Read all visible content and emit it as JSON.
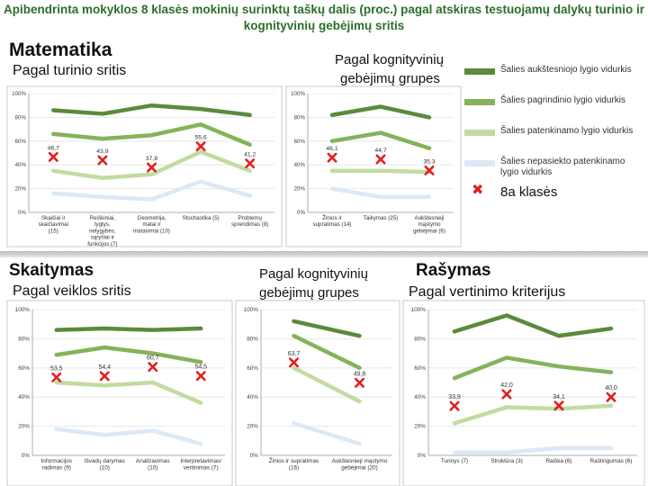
{
  "title": "Apibendrinta mokyklos 8 klasės mokinių surinktų taškų dalis (proc.) pagal atskiras testuojamų dalykų  turinio ir kognityvinių gebėjimų sritis",
  "sections": {
    "matematika": "Matematika",
    "mat_turinio": "Pagal turinio sritis",
    "mat_kogn_1": "Pagal kognityvinių",
    "mat_kogn_2": "gebėjimų grupes",
    "skaitymas": "Skaitymas",
    "sk_veiklos": "Pagal veiklos sritis",
    "sk_kogn_1": "Pagal kognityvinių",
    "sk_kogn_2": "gebėjimų grupes",
    "rasymas": "Rašymas",
    "ras_vert": "Pagal vertinimo kriterijus"
  },
  "legend": [
    {
      "label": "Šalies aukštesniojo lygio vidurkis",
      "color": "#5b8a3c"
    },
    {
      "label": "Šalies pagrindinio lygio vidurkis",
      "color": "#86b25a"
    },
    {
      "label": "Šalies patenkinamo lygio vidurkis",
      "color": "#c2dca0"
    },
    {
      "label": "Šalies nepasiekto patenkinamo lygio vidurkis",
      "color": "#dce8f5"
    },
    {
      "label": "8a klasės",
      "marker": "x",
      "color": "#e02020"
    }
  ],
  "chart_data": [
    {
      "type": "line",
      "id": "mat_turinio",
      "categories": [
        "Skaičiai ir skaičiavimai (15)",
        "Reiškiniai, lygtys, nelygybės, sąryšiai ir funkcijos (7)",
        "Geometrija, matai ir matavimai (10)",
        "Stochastika (5)",
        "Problemų sprendimas (8)"
      ],
      "ylim": [
        0,
        100
      ],
      "yticks": [
        "0%",
        "20%",
        "40%",
        "60%",
        "80%",
        "100%"
      ],
      "series": [
        {
          "name": "Šalies aukštesniojo lygio vidurkis",
          "values": [
            86,
            83,
            90,
            87,
            82
          ]
        },
        {
          "name": "Šalies pagrindinio lygio vidurkis",
          "values": [
            66,
            62,
            65,
            74,
            57
          ]
        },
        {
          "name": "Šalies patenkinamo lygio vidurkis",
          "values": [
            35,
            29,
            32,
            51,
            35
          ]
        },
        {
          "name": "Šalies nepasiekto patenkinamo lygio vidurkis",
          "values": [
            16,
            13,
            11,
            26,
            14
          ]
        }
      ],
      "class_values": [
        46.7,
        43.9,
        37.8,
        55.6,
        41.2
      ],
      "class_labels": [
        "46,7",
        "43,9",
        "37,8",
        "55,6",
        "41,2"
      ]
    },
    {
      "type": "line",
      "id": "mat_kogn",
      "categories": [
        "Žinios ir supratimas (14)",
        "Taikymas (25)",
        "Aukštesnieji mąstymo gebėjimai (6)"
      ],
      "ylim": [
        0,
        100
      ],
      "yticks": [
        "0%",
        "20%",
        "40%",
        "60%",
        "80%",
        "100%"
      ],
      "series": [
        {
          "name": "Šalies aukštesniojo lygio vidurkis",
          "values": [
            82,
            89,
            80
          ]
        },
        {
          "name": "Šalies pagrindinio lygio vidurkis",
          "values": [
            60,
            67,
            54
          ]
        },
        {
          "name": "Šalies patenkinamo lygio vidurkis",
          "values": [
            35,
            35,
            34
          ]
        },
        {
          "name": "Šalies nepasiekto patenkinamo lygio vidurkis",
          "values": [
            20,
            13,
            13
          ]
        }
      ],
      "class_values": [
        46.1,
        44.7,
        35.3
      ],
      "class_labels": [
        "46,1",
        "44,7",
        "35,3"
      ]
    },
    {
      "type": "line",
      "id": "sk_veiklos",
      "categories": [
        "Informacijos radimas (9)",
        "Išvadų darymas (10)",
        "Analizavimas (10)",
        "Interpretavimas/ vertinimas (7)"
      ],
      "ylim": [
        0,
        100
      ],
      "yticks": [
        "0%",
        "20%",
        "40%",
        "60%",
        "80%",
        "100%"
      ],
      "series": [
        {
          "name": "Šalies aukštesniojo lygio vidurkis",
          "values": [
            86,
            87,
            86,
            87
          ]
        },
        {
          "name": "Šalies pagrindinio lygio vidurkis",
          "values": [
            69,
            74,
            70,
            64
          ]
        },
        {
          "name": "Šalies patenkinamo lygio vidurkis",
          "values": [
            50,
            48,
            50,
            36
          ]
        },
        {
          "name": "Šalies nepasiekto patenkinamo lygio vidurkis",
          "values": [
            18,
            14,
            17,
            8
          ]
        }
      ],
      "class_values": [
        53.5,
        54.4,
        60.7,
        54.5
      ],
      "class_labels": [
        "53,5",
        "54,4",
        "60,7",
        "54,5"
      ]
    },
    {
      "type": "line",
      "id": "sk_kogn",
      "categories": [
        "Žinios ir supratimas (16)",
        "Aukštesnieji mąstymo gebėjimai (20)"
      ],
      "ylim": [
        0,
        100
      ],
      "yticks": [
        "0%",
        "20%",
        "40%",
        "60%",
        "80%",
        "100%"
      ],
      "series": [
        {
          "name": "Šalies aukštesniojo lygio vidurkis",
          "values": [
            92,
            82
          ]
        },
        {
          "name": "Šalies pagrindinio lygio vidurkis",
          "values": [
            82,
            60
          ]
        },
        {
          "name": "Šalies patenkinamo lygio vidurkis",
          "values": [
            60,
            37
          ]
        },
        {
          "name": "Šalies nepasiekto patenkinamo lygio vidurkis",
          "values": [
            22,
            8
          ]
        }
      ],
      "class_values": [
        63.7,
        49.8
      ],
      "class_labels": [
        "63,7",
        "49,8"
      ]
    },
    {
      "type": "line",
      "id": "ras_vert",
      "categories": [
        "Turinys (7)",
        "Struktūra (3)",
        "Raiška (6)",
        "Raštingumas (6)"
      ],
      "ylim": [
        0,
        100
      ],
      "yticks": [
        "0%",
        "20%",
        "40%",
        "60%",
        "80%",
        "100%"
      ],
      "series": [
        {
          "name": "Šalies aukštesniojo lygio vidurkis",
          "values": [
            85,
            96,
            82,
            87
          ]
        },
        {
          "name": "Šalies pagrindinio lygio vidurkis",
          "values": [
            53,
            67,
            61,
            57
          ]
        },
        {
          "name": "Šalies patenkinamo lygio vidurkis",
          "values": [
            22,
            33,
            32,
            34
          ]
        },
        {
          "name": "Šalies nepasiekto patenkinamo lygio vidurkis",
          "values": [
            2,
            2,
            5,
            5
          ]
        }
      ],
      "class_values": [
        33.9,
        42.0,
        34.1,
        40.0
      ],
      "class_labels": [
        "33,9",
        "42,0",
        "34,1",
        "40,0"
      ]
    }
  ]
}
